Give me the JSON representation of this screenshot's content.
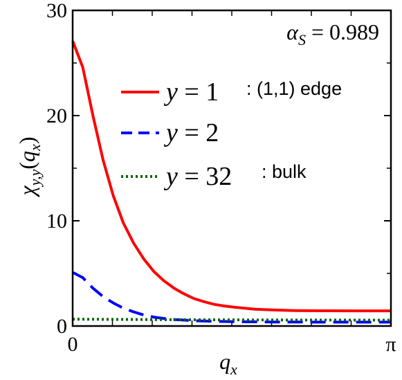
{
  "chart_data": {
    "type": "line",
    "annotation": "α_S = 0.989",
    "annotation_parts": {
      "symbol": "α",
      "sub": "S",
      "rest": " = 0.989"
    },
    "xlabel": {
      "base": "q",
      "sub": "x"
    },
    "ylabel": {
      "chi": "χ",
      "sub": "y,y",
      "paren_open": "(",
      "q": "q",
      "qsub": "x",
      "paren_close": ")"
    },
    "xlim": [
      0,
      3.14159
    ],
    "ylim": [
      0,
      30
    ],
    "x_ticks": [
      {
        "value": 0,
        "label": "0"
      },
      {
        "value": 3.14159,
        "label": "π"
      }
    ],
    "y_ticks": [
      {
        "value": 0,
        "label": "0"
      },
      {
        "value": 10,
        "label": "10"
      },
      {
        "value": 20,
        "label": "20"
      },
      {
        "value": 30,
        "label": "30"
      }
    ],
    "legend_position": "top-right",
    "series": [
      {
        "name": "y = 1",
        "name_parts": {
          "var": "y",
          "eq": " = 1"
        },
        "note": ": (1,1) edge",
        "color": "#ff0000",
        "style": "solid",
        "points": [
          [
            0,
            27.1
          ],
          [
            0.1,
            24.6
          ],
          [
            0.2,
            20.0
          ],
          [
            0.3,
            15.8
          ],
          [
            0.4,
            12.4
          ],
          [
            0.5,
            9.8
          ],
          [
            0.6,
            7.9
          ],
          [
            0.7,
            6.4
          ],
          [
            0.8,
            5.2
          ],
          [
            0.9,
            4.3
          ],
          [
            1.0,
            3.6
          ],
          [
            1.1,
            3.05
          ],
          [
            1.2,
            2.6
          ],
          [
            1.3,
            2.3
          ],
          [
            1.4,
            2.05
          ],
          [
            1.5,
            1.9
          ],
          [
            1.6,
            1.78
          ],
          [
            1.8,
            1.6
          ],
          [
            2.0,
            1.52
          ],
          [
            2.2,
            1.47
          ],
          [
            2.5,
            1.45
          ],
          [
            2.8,
            1.44
          ],
          [
            3.14159,
            1.44
          ]
        ]
      },
      {
        "name": "y = 2",
        "name_parts": {
          "var": "y",
          "eq": " = 2"
        },
        "note": "",
        "color": "#0000ff",
        "style": "dashed",
        "points": [
          [
            0,
            5.1
          ],
          [
            0.1,
            4.6
          ],
          [
            0.2,
            3.6
          ],
          [
            0.3,
            2.8
          ],
          [
            0.4,
            2.2
          ],
          [
            0.5,
            1.7
          ],
          [
            0.6,
            1.35
          ],
          [
            0.7,
            1.05
          ],
          [
            0.8,
            0.85
          ],
          [
            0.9,
            0.72
          ],
          [
            1.0,
            0.62
          ],
          [
            1.2,
            0.5
          ],
          [
            1.4,
            0.44
          ],
          [
            1.7,
            0.4
          ],
          [
            2.0,
            0.38
          ],
          [
            2.5,
            0.37
          ],
          [
            3.14159,
            0.37
          ]
        ]
      },
      {
        "name": "y = 32",
        "name_parts": {
          "var": "y",
          "eq": " = 32"
        },
        "note": ": bulk",
        "color": "#006400",
        "style": "dotted",
        "points": [
          [
            0,
            0.65
          ],
          [
            1.0,
            0.6
          ],
          [
            2.0,
            0.57
          ],
          [
            3.14159,
            0.56
          ]
        ]
      }
    ]
  }
}
